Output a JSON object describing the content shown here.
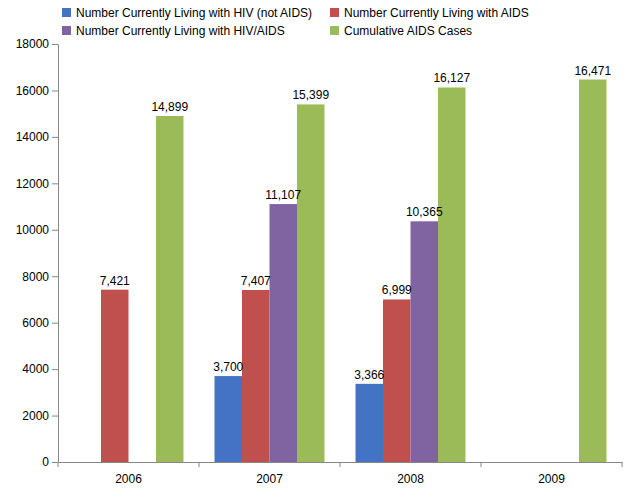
{
  "chart_data": {
    "type": "bar",
    "categories": [
      "2006",
      "2007",
      "2008",
      "2009"
    ],
    "series": [
      {
        "name": "Number Currently Living with HIV (not AIDS)",
        "color": "#4472c4",
        "values": [
          null,
          3700,
          3366,
          null
        ],
        "value_labels": [
          null,
          "3,700",
          "3,366",
          null
        ]
      },
      {
        "name": "Number Currently Living with AIDS",
        "color": "#c0504d",
        "values": [
          7421,
          7407,
          6999,
          null
        ],
        "value_labels": [
          "7,421",
          "7,407",
          "6,999",
          null
        ]
      },
      {
        "name": "Number Currently Living with HIV/AIDS",
        "color": "#8064a2",
        "values": [
          null,
          11107,
          10365,
          null
        ],
        "value_labels": [
          null,
          "11,107",
          "10,365",
          null
        ]
      },
      {
        "name": "Cumulative AIDS Cases",
        "color": "#9bbb59",
        "values": [
          14899,
          15399,
          16127,
          16471
        ],
        "value_labels": [
          "14,899",
          "15,399",
          "16,127",
          "16,471"
        ]
      }
    ],
    "ylim": [
      0,
      18000
    ],
    "yticks": [
      0,
      2000,
      4000,
      6000,
      8000,
      10000,
      12000,
      14000,
      16000,
      18000
    ],
    "grid": false,
    "legend": "top",
    "data_labels": true
  }
}
